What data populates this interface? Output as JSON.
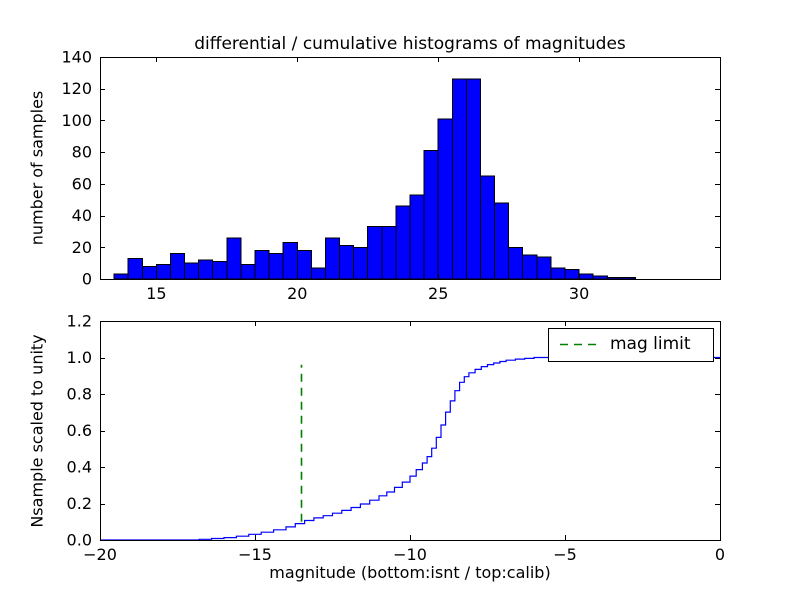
{
  "chart_data": [
    {
      "id": "calib-histogram",
      "type": "bar",
      "title": "differential / cumulative histograms of magnitudes",
      "ylabel": "number of samples",
      "bar_color": "#0000ff",
      "bar_edge_color": "#000000",
      "bin_start": 13.5,
      "bin_width": 0.5,
      "values": [
        3,
        13,
        8,
        9,
        16,
        10,
        12,
        11,
        26,
        9,
        18,
        16,
        23,
        18,
        7,
        26,
        21,
        20,
        33,
        33,
        46,
        53,
        81,
        101,
        126,
        126,
        65,
        48,
        20,
        15,
        14,
        7,
        6,
        3,
        2,
        1,
        1
      ],
      "xlim": [
        13,
        35
      ],
      "ylim": [
        0,
        140
      ],
      "xticks": [
        15,
        20,
        25,
        30
      ],
      "xtick_labels": [
        "15",
        "20",
        "25",
        "30"
      ],
      "yticks": [
        0,
        20,
        40,
        60,
        80,
        100,
        120,
        140
      ],
      "ytick_labels": [
        "0",
        "20",
        "40",
        "60",
        "80",
        "100",
        "120",
        "140"
      ],
      "grid": false
    },
    {
      "id": "cumulative-histogram",
      "type": "line",
      "step": true,
      "xlabel": "magnitude (bottom:isnt / top:calib)",
      "ylabel": "Nsample scaled to unity",
      "line_color": "#0000ff",
      "points": [
        [
          -20,
          0
        ],
        [
          -16.8,
          0.004
        ],
        [
          -16.4,
          0.008
        ],
        [
          -16,
          0.013
        ],
        [
          -15.6,
          0.021
        ],
        [
          -15.2,
          0.031
        ],
        [
          -14.8,
          0.043
        ],
        [
          -14.4,
          0.056
        ],
        [
          -14,
          0.072
        ],
        [
          -13.7,
          0.09
        ],
        [
          -13.4,
          0.107
        ],
        [
          -13.1,
          0.121
        ],
        [
          -12.8,
          0.133
        ],
        [
          -12.5,
          0.147
        ],
        [
          -12.2,
          0.162
        ],
        [
          -11.9,
          0.178
        ],
        [
          -11.6,
          0.197
        ],
        [
          -11.3,
          0.218
        ],
        [
          -11,
          0.242
        ],
        [
          -10.75,
          0.263
        ],
        [
          -10.5,
          0.288
        ],
        [
          -10.25,
          0.317
        ],
        [
          -10,
          0.35
        ],
        [
          -9.8,
          0.386
        ],
        [
          -9.6,
          0.422
        ],
        [
          -9.45,
          0.457
        ],
        [
          -9.3,
          0.503
        ],
        [
          -9.15,
          0.562
        ],
        [
          -9,
          0.63
        ],
        [
          -8.85,
          0.701
        ],
        [
          -8.7,
          0.762
        ],
        [
          -8.55,
          0.818
        ],
        [
          -8.4,
          0.864
        ],
        [
          -8.25,
          0.895
        ],
        [
          -8.1,
          0.916
        ],
        [
          -7.9,
          0.935
        ],
        [
          -7.7,
          0.95
        ],
        [
          -7.5,
          0.961
        ],
        [
          -7.3,
          0.97
        ],
        [
          -7.1,
          0.978
        ],
        [
          -6.9,
          0.985
        ],
        [
          -6.6,
          0.991
        ],
        [
          -6.3,
          0.995
        ],
        [
          -6,
          1.0
        ],
        [
          0,
          1.0
        ]
      ],
      "xlim": [
        -20,
        0
      ],
      "ylim": [
        0,
        1.2
      ],
      "xticks": [
        -20,
        -15,
        -10,
        -5,
        0
      ],
      "xtick_labels": [
        "−20",
        "−15",
        "−10",
        "−5",
        "0"
      ],
      "yticks": [
        0,
        0.2,
        0.4,
        0.6,
        0.8,
        1.0,
        1.2
      ],
      "ytick_labels": [
        "0.0",
        "0.2",
        "0.4",
        "0.6",
        "0.8",
        "1.0",
        "1.2"
      ],
      "vline": {
        "x": -13.5,
        "y0": 0.1,
        "y1": 0.96,
        "color": "#008000",
        "style": "dashed",
        "label": "mag limit"
      },
      "legend": {
        "label": "mag limit",
        "line_color": "#008000",
        "position": "upper right"
      },
      "grid": false
    }
  ]
}
